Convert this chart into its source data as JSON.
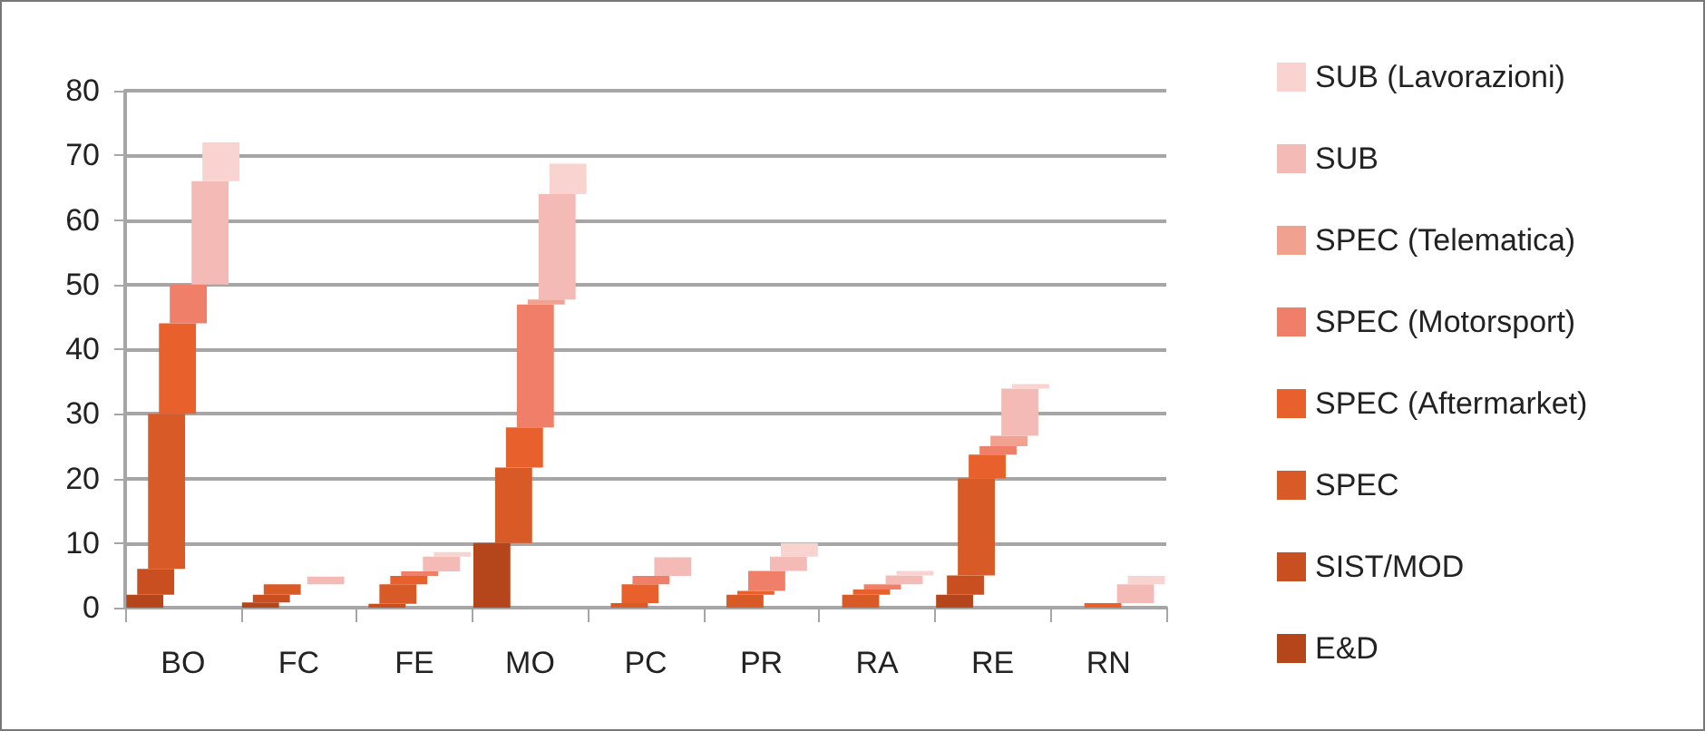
{
  "chart_data": {
    "type": "bar",
    "stacked": true,
    "categories": [
      "BO",
      "FC",
      "FE",
      "MO",
      "PC",
      "PR",
      "RA",
      "RE",
      "RN"
    ],
    "series": [
      {
        "name": "E&D",
        "color": "#b5451b",
        "values": [
          2,
          0.8,
          null,
          10,
          null,
          null,
          null,
          2,
          null
        ]
      },
      {
        "name": "SIST/MOD",
        "color": "#c94f21",
        "values": [
          4,
          1.2,
          0.6,
          null,
          null,
          null,
          null,
          3,
          null
        ]
      },
      {
        "name": "SPEC",
        "color": "#d85a27",
        "values": [
          24,
          1.6,
          3,
          11.7,
          0.7,
          2,
          2,
          15,
          null
        ]
      },
      {
        "name": "SPEC (Aftermarket)",
        "color": "#e8612c",
        "values": [
          14,
          null,
          1.3,
          6.2,
          2.9,
          0.6,
          0.8,
          3.7,
          0.7
        ]
      },
      {
        "name": "SPEC (Motorsport)",
        "color": "#ef7f68",
        "values": [
          6,
          null,
          0.7,
          19,
          1.3,
          3.1,
          0.8,
          1.3,
          null
        ]
      },
      {
        "name": "SPEC (Telematica)",
        "color": "#f2a190",
        "values": [
          null,
          null,
          null,
          0.8,
          null,
          null,
          null,
          1.6,
          null
        ]
      },
      {
        "name": "SUB",
        "color": "#f4bbb6",
        "values": [
          16,
          1.2,
          2.3,
          16.3,
          2.9,
          2.2,
          1.4,
          7.3,
          2.9
        ]
      },
      {
        "name": "SUB (Lavorazioni)",
        "color": "#f8d3d0",
        "values": [
          6,
          null,
          0.7,
          4.7,
          null,
          2.1,
          0.7,
          0.7,
          1.3
        ]
      }
    ],
    "ylim": [
      0,
      80
    ],
    "yticks": [
      0,
      10,
      20,
      30,
      40,
      50,
      60,
      70,
      80
    ],
    "grid": "y",
    "legend": "right"
  }
}
